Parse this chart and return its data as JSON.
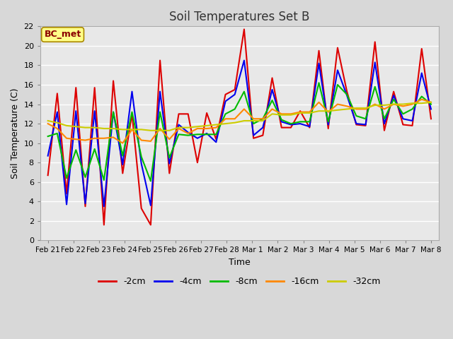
{
  "title": "Soil Temperatures Set B",
  "xlabel": "Time",
  "ylabel": "Soil Temperature (C)",
  "ylim": [
    0,
    22
  ],
  "yticks": [
    0,
    2,
    4,
    6,
    8,
    10,
    12,
    14,
    16,
    18,
    20,
    22
  ],
  "x_labels": [
    "Feb 21",
    "Feb 22",
    "Feb 23",
    "Feb 24",
    "Feb 25",
    "Feb 26",
    "Feb 27",
    "Feb 28",
    "Mar 1",
    "Mar 2",
    "Mar 3",
    "Mar 4",
    "Mar 5",
    "Mar 6",
    "Mar 7",
    "Mar 8"
  ],
  "legend_label": "BC_met",
  "legend_text_color": "#8B0000",
  "legend_box_color": "#FFFF88",
  "background_color": "#D8D8D8",
  "plot_bg_color": "#E8E8E8",
  "grid_color": "#CCCCCC",
  "series": [
    {
      "label": "-2cm",
      "color": "#DD0000",
      "data": [
        6.7,
        15.1,
        4.8,
        15.7,
        3.5,
        15.7,
        1.6,
        16.4,
        6.9,
        13.0,
        3.3,
        1.6,
        18.5,
        6.9,
        13.0,
        13.0,
        8.0,
        13.1,
        10.4,
        15.0,
        15.5,
        21.7,
        10.5,
        10.8,
        16.7,
        11.6,
        11.6,
        13.3,
        11.6,
        19.5,
        11.5,
        19.8,
        15.3,
        11.9,
        11.8,
        20.4,
        11.3,
        15.3,
        11.9,
        11.8,
        19.7,
        12.5
      ]
    },
    {
      "label": "-4cm",
      "color": "#0000EE",
      "data": [
        8.7,
        13.2,
        3.7,
        13.3,
        3.8,
        13.3,
        3.5,
        13.2,
        7.8,
        15.3,
        7.9,
        3.6,
        15.3,
        7.9,
        11.9,
        11.1,
        10.5,
        11.0,
        10.1,
        14.3,
        15.0,
        18.5,
        10.8,
        11.6,
        15.5,
        12.2,
        11.9,
        12.0,
        11.7,
        18.2,
        11.9,
        17.5,
        14.9,
        12.0,
        11.9,
        18.3,
        12.0,
        14.9,
        12.5,
        12.3,
        17.2,
        13.5
      ]
    },
    {
      "label": "-8cm",
      "color": "#00BB00",
      "data": [
        10.7,
        11.0,
        6.4,
        9.3,
        6.5,
        9.4,
        6.2,
        13.2,
        8.7,
        13.2,
        8.6,
        6.1,
        13.2,
        8.5,
        10.9,
        10.8,
        10.9,
        10.9,
        10.9,
        13.0,
        13.5,
        15.3,
        12.0,
        12.5,
        14.4,
        12.4,
        12.0,
        12.2,
        12.2,
        16.2,
        12.2,
        16.0,
        15.0,
        12.8,
        12.5,
        15.8,
        12.5,
        14.5,
        13.0,
        13.5,
        14.8,
        14.0
      ]
    },
    {
      "label": "-16cm",
      "color": "#FF8800",
      "data": [
        12.0,
        11.5,
        10.5,
        10.4,
        10.3,
        10.5,
        10.5,
        10.6,
        10.0,
        11.4,
        10.3,
        10.2,
        11.5,
        10.4,
        11.5,
        11.0,
        11.5,
        11.5,
        11.6,
        12.5,
        12.5,
        13.5,
        12.5,
        12.5,
        13.5,
        13.0,
        13.0,
        13.2,
        13.2,
        14.2,
        13.2,
        14.0,
        13.8,
        13.5,
        13.5,
        14.0,
        13.5,
        14.0,
        13.8,
        14.0,
        14.5,
        14.2
      ]
    },
    {
      "label": "-32cm",
      "color": "#CCCC00",
      "data": [
        12.3,
        12.1,
        11.8,
        11.7,
        11.6,
        11.6,
        11.5,
        11.5,
        11.4,
        11.4,
        11.4,
        11.3,
        11.3,
        11.3,
        11.6,
        11.6,
        11.7,
        11.8,
        11.9,
        12.0,
        12.1,
        12.3,
        12.3,
        12.3,
        13.0,
        12.9,
        12.9,
        13.1,
        13.1,
        13.3,
        13.3,
        13.4,
        13.5,
        13.6,
        13.6,
        13.9,
        13.9,
        14.0,
        14.0,
        14.1,
        14.1,
        14.2
      ]
    }
  ]
}
